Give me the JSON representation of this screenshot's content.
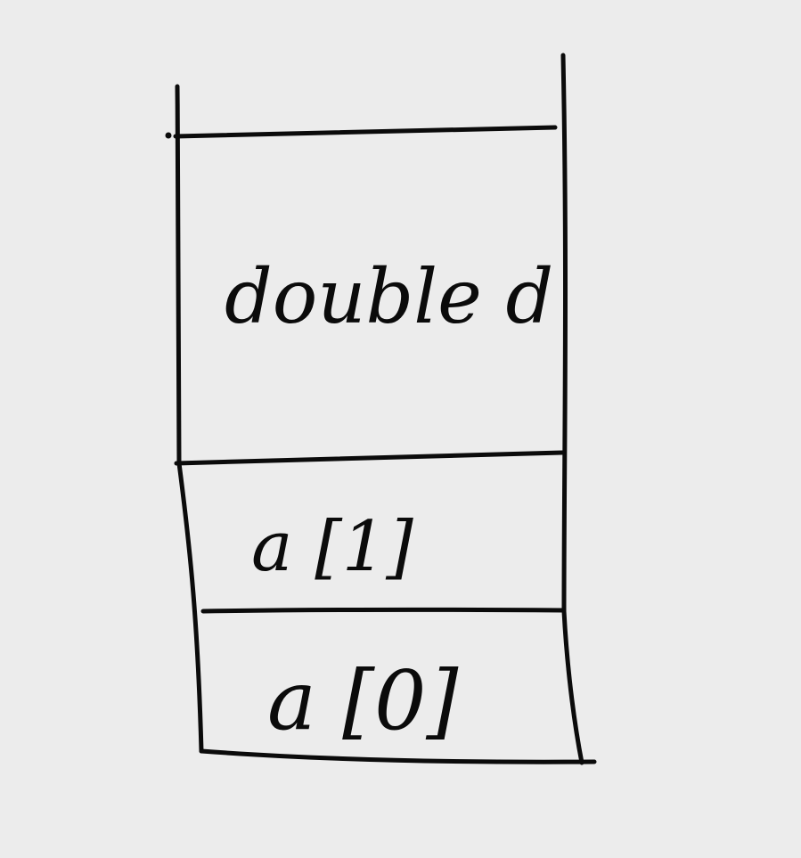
{
  "diagram": {
    "kind": "memory stack sketch",
    "cells": [
      {
        "label": "double d"
      },
      {
        "label": "a [1]"
      },
      {
        "label": "a [0]"
      }
    ],
    "colors": {
      "background": "#ececec",
      "ink": "#0b0b0b"
    }
  }
}
